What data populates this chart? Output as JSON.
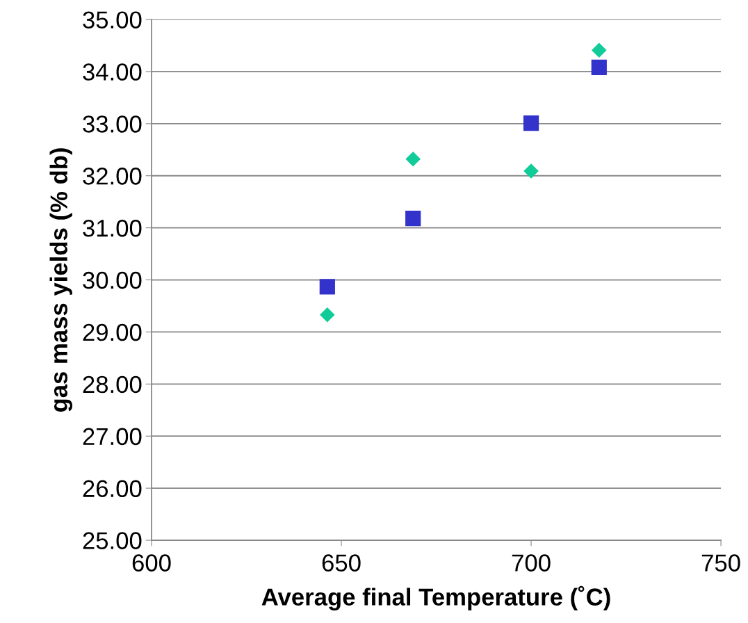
{
  "chart_data": {
    "type": "scatter",
    "xlabel": "Average final Temperature (˚C)",
    "ylabel": "gas mass yields (% db)",
    "x": [
      646.3,
      668.9,
      700.0,
      717.9
    ],
    "series": [
      {
        "color": "#3333cc",
        "marker": "square",
        "values": [
          29.87,
          31.18,
          33.01,
          34.08
        ]
      },
      {
        "color": "#11cc99",
        "marker": "diamond",
        "values": [
          29.33,
          32.32,
          32.09,
          34.41
        ]
      }
    ],
    "xlim": [
      600,
      750
    ],
    "xticks": [
      600,
      650,
      700,
      750
    ],
    "ylim": [
      25,
      35
    ],
    "yticks": [
      {
        "value": 25,
        "label": "25.00"
      },
      {
        "value": 26,
        "label": "26.00"
      },
      {
        "value": 27,
        "label": "27.00"
      },
      {
        "value": 28,
        "label": "28.00"
      },
      {
        "value": 29,
        "label": "29.00"
      },
      {
        "value": 30,
        "label": "30.00"
      },
      {
        "value": 31,
        "label": "31.00"
      },
      {
        "value": 32,
        "label": "32.00"
      },
      {
        "value": 33,
        "label": "33.00"
      },
      {
        "value": 34,
        "label": "34.00"
      },
      {
        "value": 35,
        "label": "35.00"
      }
    ],
    "grid": "y"
  }
}
